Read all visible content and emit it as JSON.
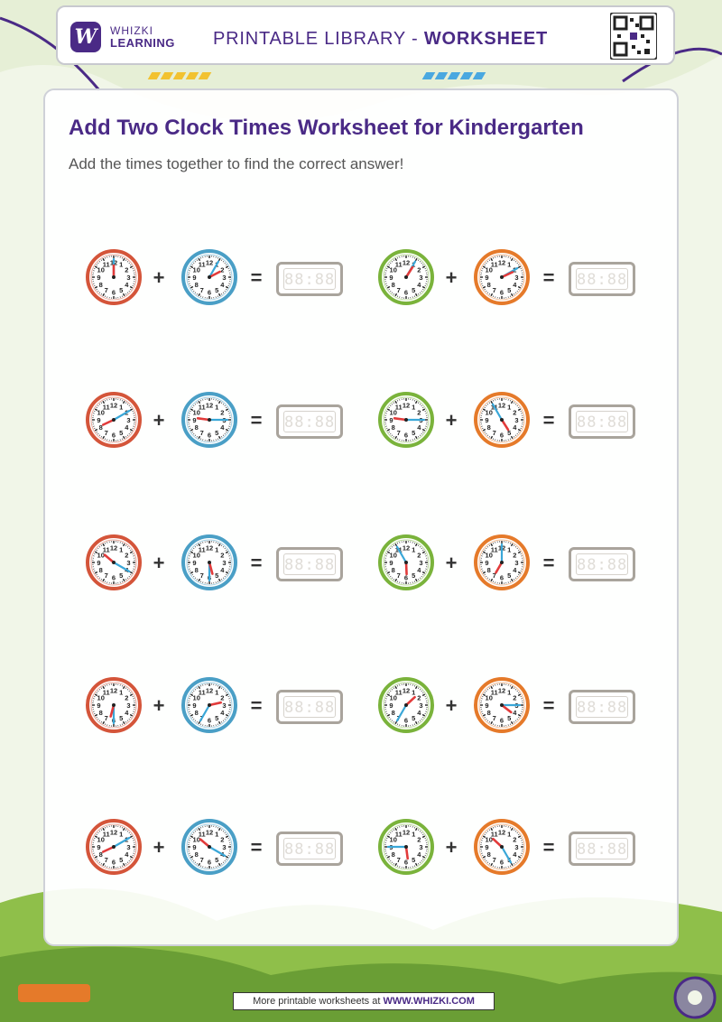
{
  "header": {
    "logo_icon": "W",
    "logo_line1": "WHIZKI",
    "logo_line2": "LEARNING",
    "title_prefix": "PRINTABLE LIBRARY - ",
    "title_bold": "WORKSHEET"
  },
  "title": "Add Two Clock Times Worksheet for Kindergarten",
  "instructions": "Add the times together to find the correct answer!",
  "operators": {
    "plus": "+",
    "equals": "="
  },
  "answer_placeholder": "88:88",
  "colors": {
    "brand": "#4a2a86",
    "clock_red": "#d4553a",
    "clock_blue": "#4a9fc6",
    "clock_green": "#7ab33b",
    "clock_orange": "#e57a2a",
    "hour_hand": "#e23b3b",
    "minute_hand": "#3aa7d8"
  },
  "clock_numbers": [
    "12",
    "1",
    "2",
    "3",
    "4",
    "5",
    "6",
    "7",
    "8",
    "9",
    "10",
    "11"
  ],
  "problems": [
    {
      "a": {
        "color": "red",
        "h": 12,
        "m": 0
      },
      "b": {
        "color": "blue",
        "h": 2,
        "m": 5
      }
    },
    {
      "a": {
        "color": "green",
        "h": 1,
        "m": 5
      },
      "b": {
        "color": "orange",
        "h": 2,
        "m": 10
      }
    },
    {
      "a": {
        "color": "red",
        "h": 8,
        "m": 10
      },
      "b": {
        "color": "blue",
        "h": 9,
        "m": 15
      }
    },
    {
      "a": {
        "color": "green",
        "h": 9,
        "m": 15
      },
      "b": {
        "color": "orange",
        "h": 4,
        "m": 55
      }
    },
    {
      "a": {
        "color": "red",
        "h": 10,
        "m": 20
      },
      "b": {
        "color": "blue",
        "h": 5,
        "m": 30
      }
    },
    {
      "a": {
        "color": "green",
        "h": 5,
        "m": 55
      },
      "b": {
        "color": "orange",
        "h": 7,
        "m": 0
      }
    },
    {
      "a": {
        "color": "red",
        "h": 6,
        "m": 30
      },
      "b": {
        "color": "blue",
        "h": 2,
        "m": 35
      }
    },
    {
      "a": {
        "color": "green",
        "h": 1,
        "m": 35
      },
      "b": {
        "color": "orange",
        "h": 4,
        "m": 15
      }
    },
    {
      "a": {
        "color": "red",
        "h": 8,
        "m": 10
      },
      "b": {
        "color": "blue",
        "h": 10,
        "m": 20
      }
    },
    {
      "a": {
        "color": "green",
        "h": 5,
        "m": 45
      },
      "b": {
        "color": "orange",
        "h": 10,
        "m": 25
      }
    }
  ],
  "footer": {
    "prefix": "More printable worksheets at ",
    "url": "WWW.WHIZKI.COM"
  }
}
